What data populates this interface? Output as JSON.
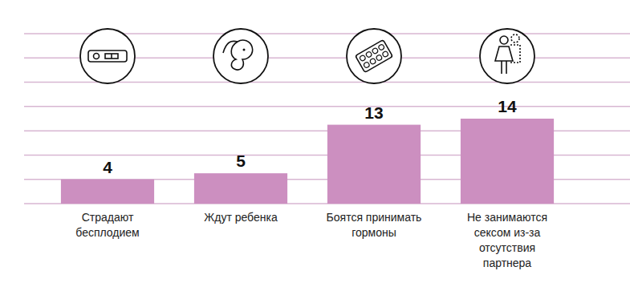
{
  "chart_data": {
    "type": "bar",
    "categories": [
      "Страдают бесплодием",
      "Ждут ребенка",
      "Боятся принимать гормоны",
      "Не занимаются сексом из-за отсутствия партнера"
    ],
    "values": [
      4,
      5,
      13,
      14
    ],
    "color": "#cc8fc0",
    "ylim": [
      0,
      28
    ],
    "yticks": [
      0,
      4,
      8,
      12,
      16,
      20,
      24,
      28
    ],
    "grid": true,
    "data_labels": true,
    "tick_labels": false
  }
}
